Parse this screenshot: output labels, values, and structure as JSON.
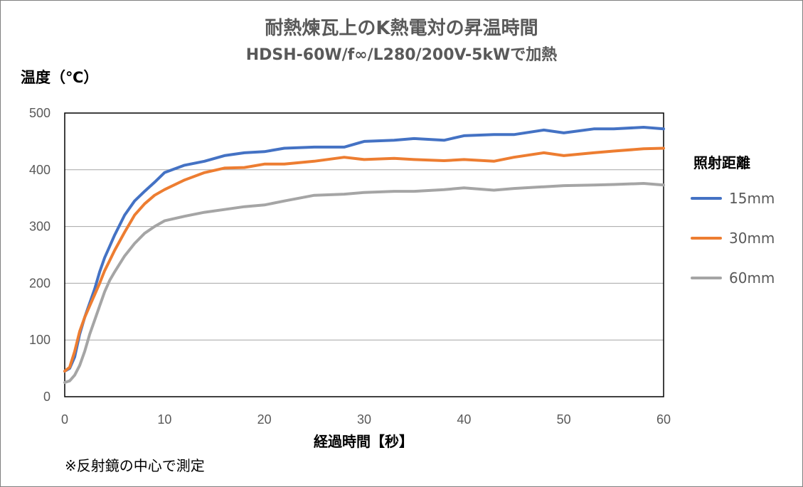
{
  "chart_data": {
    "type": "line",
    "title": "耐熱煉瓦上のK熱電対の昇温時間",
    "subtitle": "HDSH-60W/f∞/L280/200V-5kWで加熱",
    "ylabel": "温度（℃）",
    "xlabel": "経過時間【秒】",
    "xlim": [
      0,
      60
    ],
    "ylim": [
      0,
      500
    ],
    "x_ticks": [
      "0",
      "10",
      "20",
      "30",
      "40",
      "50",
      "60"
    ],
    "y_ticks": [
      "0",
      "100",
      "200",
      "300",
      "400",
      "500"
    ],
    "grid": "horizontal",
    "legend": {
      "title": "照射距離",
      "placement": "right"
    },
    "note": "※反射鏡の中心で測定",
    "x": [
      0,
      0.5,
      1,
      1.5,
      2,
      2.5,
      3,
      3.5,
      4,
      4.5,
      5,
      6,
      7,
      8,
      9,
      10,
      12,
      14,
      16,
      18,
      20,
      22,
      25,
      28,
      30,
      33,
      35,
      38,
      40,
      43,
      45,
      48,
      50,
      53,
      55,
      58,
      60
    ],
    "series": [
      {
        "name": "15mm",
        "color": "#4472c4",
        "values": [
          45,
          50,
          70,
          110,
          140,
          165,
          190,
          220,
          245,
          265,
          285,
          320,
          345,
          362,
          378,
          395,
          408,
          415,
          425,
          430,
          432,
          438,
          440,
          440,
          450,
          452,
          455,
          452,
          460,
          462,
          462,
          470,
          465,
          472,
          472,
          475,
          472
        ]
      },
      {
        "name": "30mm",
        "color": "#ed7d31",
        "values": [
          45,
          52,
          80,
          115,
          140,
          160,
          180,
          200,
          222,
          240,
          258,
          290,
          320,
          340,
          355,
          365,
          382,
          395,
          403,
          404,
          410,
          410,
          415,
          422,
          418,
          420,
          418,
          416,
          418,
          415,
          422,
          430,
          425,
          430,
          433,
          437,
          438
        ]
      },
      {
        "name": "60mm",
        "color": "#a5a5a5",
        "values": [
          25,
          28,
          38,
          55,
          80,
          110,
          135,
          160,
          185,
          205,
          220,
          248,
          270,
          288,
          300,
          310,
          318,
          325,
          330,
          335,
          338,
          345,
          355,
          357,
          360,
          362,
          362,
          365,
          368,
          364,
          367,
          370,
          372,
          373,
          374,
          376,
          373
        ]
      }
    ]
  }
}
